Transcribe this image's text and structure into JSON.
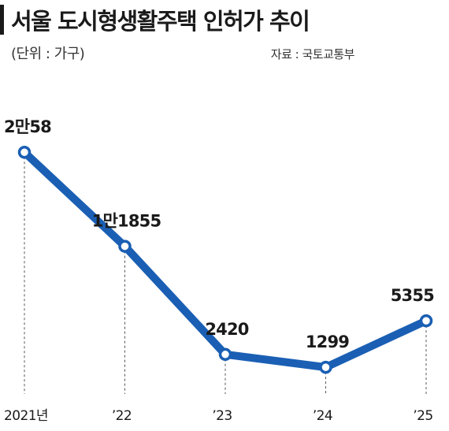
{
  "chart_data": {
    "type": "line",
    "title": "서울 도시형생활주택 인허가 추이",
    "unit": "(단위 : 가구)",
    "source": "자료 : 국토교통부",
    "categories": [
      "2021년",
      "’22",
      "’23",
      "’24",
      "’25"
    ],
    "series": [
      {
        "values": [
          20058,
          11855,
          2420,
          1299,
          5355
        ],
        "labels": [
          "2만58",
          "1만1855",
          "2420",
          "1299",
          "5355"
        ]
      }
    ],
    "ylim": [
      0,
      22000
    ],
    "grid": false,
    "line_color": "#1a5fb4"
  }
}
